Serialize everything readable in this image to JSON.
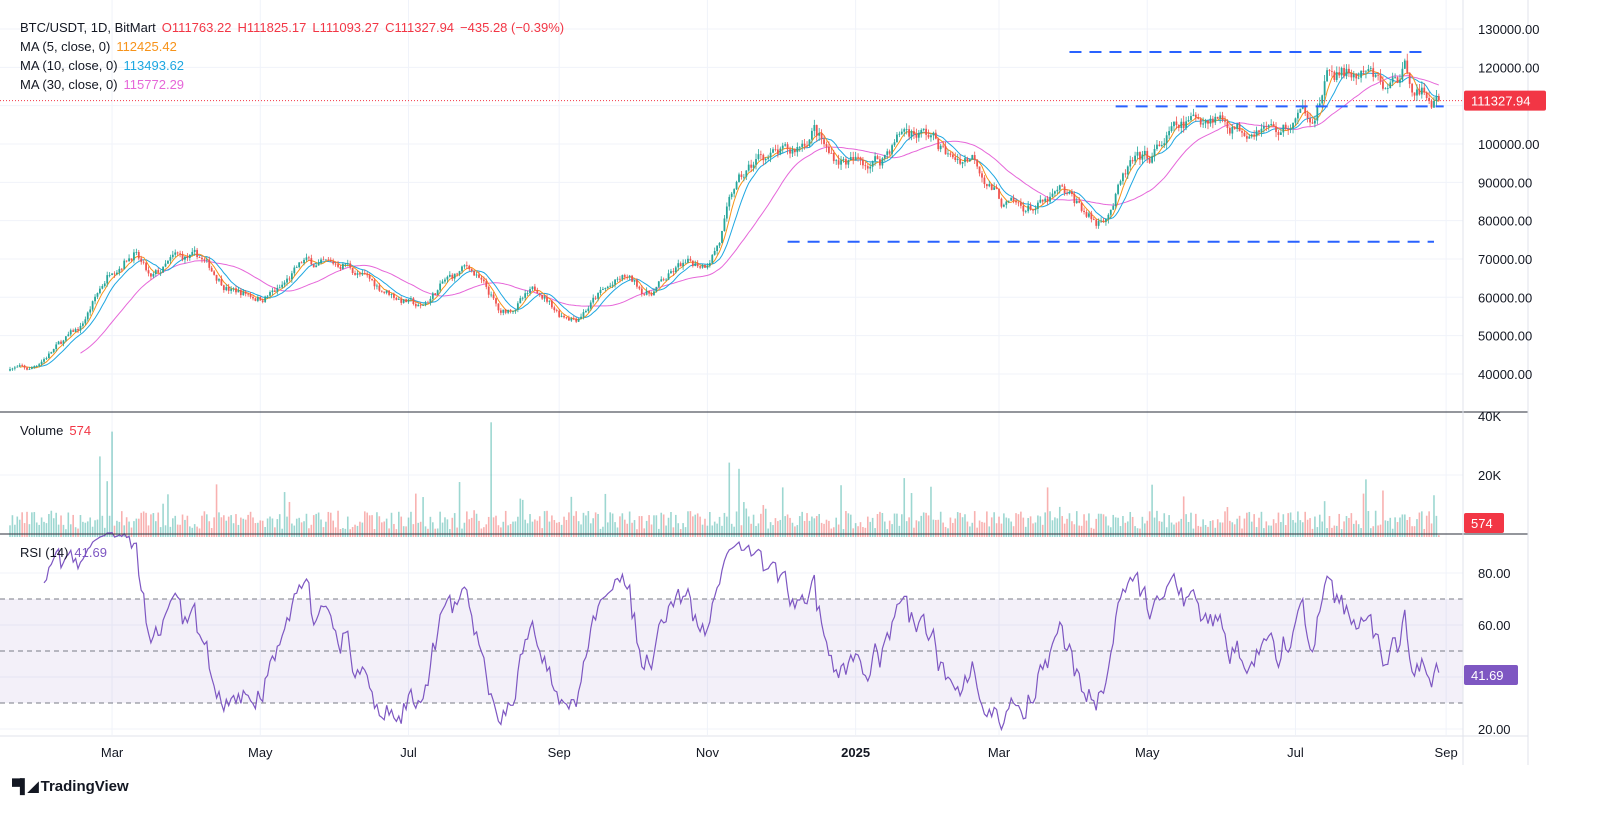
{
  "header": {
    "symbol": "BTC/USDT, 1D, BitMart",
    "open": "O111763.22",
    "high": "H111825.17",
    "low": "L111093.27",
    "close": "C111327.94",
    "change": "−435.28 (−0.39%)"
  },
  "ma_legend": [
    {
      "label": "MA (5, close, 0)",
      "value": "112425.42",
      "color": "#f7931a"
    },
    {
      "label": "MA (10, close, 0)",
      "value": "113493.62",
      "color": "#1ea7e1"
    },
    {
      "label": "MA (30, close, 0)",
      "value": "115772.29",
      "color": "#e667d9"
    }
  ],
  "volume_legend": {
    "label": "Volume",
    "value": "574"
  },
  "rsi_legend": {
    "label": "RSI (14)",
    "value": "41.69"
  },
  "last_price_tag": "111327.94",
  "volume_tag": "574",
  "rsi_tag": "41.69",
  "brand": "TradingView",
  "colors": {
    "up": "#26a69a",
    "down": "#ef5350",
    "rsi": "#7e57c2",
    "dash": "#2962ff",
    "tag": "#f23645"
  },
  "chart_data": {
    "type": "candlestick",
    "title": "BTC/USDT, 1D, BitMart",
    "start_date": "2024-01-19",
    "price_axis": {
      "ticks": [
        "130000.00",
        "120000.00",
        "100000.00",
        "90000.00",
        "80000.00",
        "70000.00",
        "60000.00",
        "50000.00",
        "40000.00"
      ],
      "tick_values": [
        130000,
        120000,
        100000,
        90000,
        80000,
        70000,
        60000,
        50000,
        40000
      ],
      "range": [
        40000,
        130000
      ]
    },
    "volume_axis": {
      "ticks": [
        "40K",
        "20K"
      ],
      "tick_values": [
        40000,
        20000
      ],
      "range": [
        0,
        40000
      ]
    },
    "rsi_axis": {
      "ticks": [
        "80.00",
        "60.00",
        "20.00"
      ],
      "tick_values": [
        80,
        60,
        20
      ],
      "bands": [
        30,
        50,
        70
      ]
    },
    "time_axis": [
      {
        "label": "Mar",
        "day": 42
      },
      {
        "label": "May",
        "day": 103
      },
      {
        "label": "Jul",
        "day": 164
      },
      {
        "label": "Sep",
        "day": 226
      },
      {
        "label": "Nov",
        "day": 287
      },
      {
        "label": "2025",
        "day": 348
      },
      {
        "label": "Mar",
        "day": 407
      },
      {
        "label": "May",
        "day": 468
      },
      {
        "label": "Jul",
        "day": 529
      },
      {
        "label": "Sep",
        "day": 591
      }
    ],
    "approx_close_anchors_day_price": [
      [
        0,
        42000
      ],
      [
        8,
        41000
      ],
      [
        21,
        48000
      ],
      [
        29,
        52000
      ],
      [
        37,
        62000
      ],
      [
        42,
        68000
      ],
      [
        51,
        72000
      ],
      [
        58,
        64000
      ],
      [
        68,
        70000
      ],
      [
        78,
        70000
      ],
      [
        91,
        62000
      ],
      [
        103,
        60000
      ],
      [
        111,
        62000
      ],
      [
        121,
        69000
      ],
      [
        132,
        68000
      ],
      [
        138,
        69000
      ],
      [
        148,
        64000
      ],
      [
        160,
        60000
      ],
      [
        169,
        57000
      ],
      [
        179,
        64000
      ],
      [
        189,
        68000
      ],
      [
        198,
        60000
      ],
      [
        202,
        55000
      ],
      [
        210,
        59000
      ],
      [
        218,
        62000
      ],
      [
        226,
        56000
      ],
      [
        233,
        55000
      ],
      [
        243,
        61000
      ],
      [
        253,
        65000
      ],
      [
        263,
        61000
      ],
      [
        276,
        68000
      ],
      [
        286,
        69000
      ],
      [
        292,
        75000
      ],
      [
        298,
        88000
      ],
      [
        309,
        97000
      ],
      [
        321,
        97000
      ],
      [
        331,
        104000
      ],
      [
        337,
        97000
      ],
      [
        348,
        95000
      ],
      [
        358,
        96000
      ],
      [
        368,
        104000
      ],
      [
        379,
        102000
      ],
      [
        387,
        96000
      ],
      [
        397,
        97000
      ],
      [
        403,
        90000
      ],
      [
        409,
        84000
      ],
      [
        416,
        83000
      ],
      [
        426,
        84000
      ],
      [
        432,
        87000
      ],
      [
        440,
        84000
      ],
      [
        447,
        79000
      ],
      [
        453,
        84000
      ],
      [
        461,
        94000
      ],
      [
        469,
        96000
      ],
      [
        477,
        102000
      ],
      [
        490,
        107000
      ],
      [
        496,
        108000
      ],
      [
        506,
        104000
      ],
      [
        514,
        106000
      ],
      [
        523,
        103000
      ],
      [
        531,
        107000
      ],
      [
        537,
        109000
      ],
      [
        543,
        118000
      ],
      [
        551,
        118000
      ],
      [
        560,
        117000
      ],
      [
        566,
        114000
      ],
      [
        574,
        119000
      ],
      [
        580,
        114000
      ],
      [
        588,
        111328
      ]
    ],
    "horizontal_lines": [
      {
        "price": 124000,
        "from_day": 436,
        "to_day": 584
      },
      {
        "price": 109800,
        "from_day": 455,
        "to_day": 590
      },
      {
        "price": 74500,
        "from_day": 320,
        "to_day": 586
      }
    ],
    "last_close": 111327.94
  }
}
